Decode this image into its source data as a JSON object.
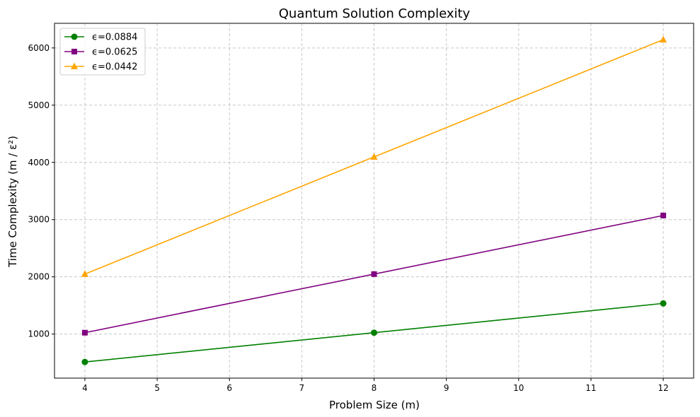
{
  "chart_data": {
    "type": "line",
    "title": "Quantum Solution Complexity",
    "xlabel": "Problem Size (m)",
    "ylabel": "Time Complexity (m / ε²)",
    "x": [
      4,
      8,
      12
    ],
    "xlim": [
      3.58,
      12.42
    ],
    "ylim": [
      230,
      6430
    ],
    "xticks": [
      4,
      5,
      6,
      7,
      8,
      9,
      10,
      11,
      12
    ],
    "yticks": [
      1000,
      2000,
      3000,
      4000,
      5000,
      6000
    ],
    "grid": true,
    "legend_position": "top-left",
    "series": [
      {
        "name": "ϵ=0.0884",
        "values": [
          512,
          1024,
          1536
        ],
        "color": "#008000",
        "marker": "circle"
      },
      {
        "name": "ϵ=0.0625",
        "values": [
          1024,
          2048,
          3072
        ],
        "color": "#800080",
        "marker": "square"
      },
      {
        "name": "ϵ=0.0442",
        "values": [
          2048,
          4096,
          6144
        ],
        "color": "#ffa500",
        "marker": "triangle"
      }
    ]
  }
}
